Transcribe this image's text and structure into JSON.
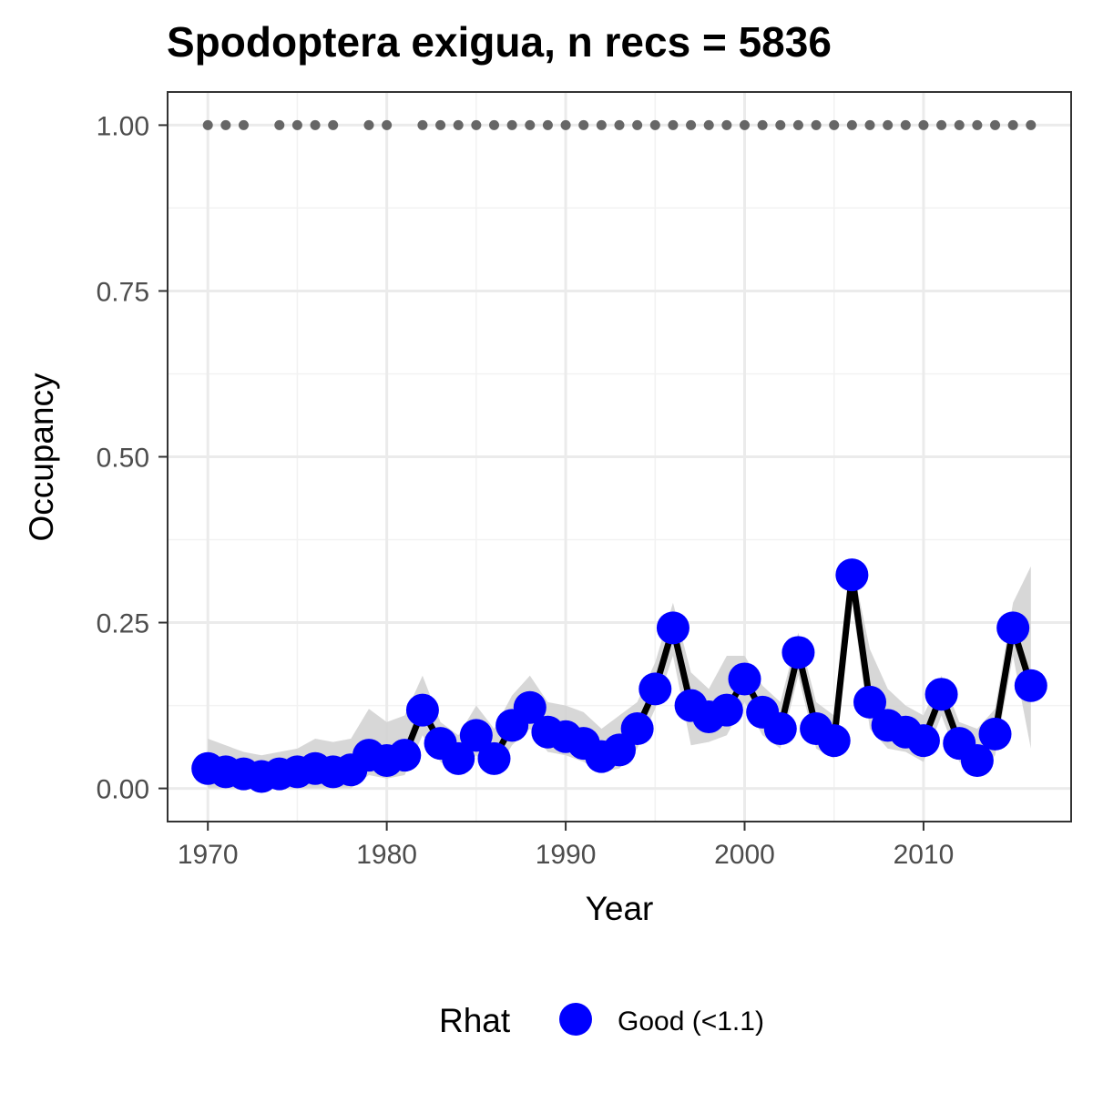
{
  "chart_data": {
    "type": "line",
    "title": "Spodoptera exigua, n recs = 5836",
    "xlabel": "Year",
    "ylabel": "Occupancy",
    "xlim": [
      1967.75,
      2018.25
    ],
    "ylim": [
      -0.05,
      1.05
    ],
    "x_ticks": [
      1970,
      1980,
      1990,
      2000,
      2010
    ],
    "x_tick_labels": [
      "1970",
      "1980",
      "1990",
      "2000",
      "2010"
    ],
    "y_ticks": [
      0,
      0.25,
      0.5,
      0.75,
      1.0
    ],
    "y_tick_labels": [
      "0.00",
      "0.25",
      "0.50",
      "0.75",
      "1.00"
    ],
    "grid": true,
    "colors": {
      "point": "#0000ff",
      "line": "#000000",
      "ribbon": "#d3d3d3",
      "record_dots": "#666666"
    },
    "series": [
      {
        "x": [
          1970,
          1971,
          1972,
          1973,
          1974,
          1975,
          1976,
          1977,
          1978,
          1979,
          1980,
          1981,
          1982,
          1983,
          1984,
          1985,
          1986,
          1987,
          1988,
          1989,
          1990,
          1991,
          1992,
          1993,
          1994,
          1995,
          1996,
          1997,
          1998,
          1999,
          2000,
          2001,
          2002,
          2003,
          2004,
          2005,
          2006,
          2007,
          2008,
          2009,
          2010,
          2011,
          2012,
          2013,
          2014,
          2015,
          2016
        ],
        "y": [
          0.03,
          0.025,
          0.022,
          0.018,
          0.022,
          0.025,
          0.03,
          0.025,
          0.028,
          0.05,
          0.042,
          0.05,
          0.118,
          0.068,
          0.045,
          0.08,
          0.045,
          0.095,
          0.122,
          0.085,
          0.078,
          0.068,
          0.048,
          0.058,
          0.09,
          0.15,
          0.242,
          0.125,
          0.108,
          0.118,
          0.165,
          0.115,
          0.09,
          0.205,
          0.09,
          0.072,
          0.322,
          0.13,
          0.095,
          0.085,
          0.072,
          0.142,
          0.068,
          0.042,
          0.082,
          0.242,
          0.155
        ],
        "lower": [
          0.0,
          0.0,
          0.0,
          0.0,
          0.0,
          0.0,
          0.0,
          0.0,
          0.0,
          0.02,
          0.015,
          0.02,
          0.08,
          0.04,
          0.02,
          0.05,
          0.02,
          0.065,
          0.09,
          0.055,
          0.05,
          0.04,
          0.025,
          0.03,
          0.06,
          0.12,
          0.2,
          0.065,
          0.07,
          0.08,
          0.13,
          0.08,
          0.06,
          0.17,
          0.06,
          0.045,
          0.28,
          0.09,
          0.06,
          0.055,
          0.04,
          0.11,
          0.04,
          0.02,
          0.05,
          0.2,
          0.06
        ],
        "upper": [
          0.075,
          0.065,
          0.055,
          0.05,
          0.055,
          0.06,
          0.075,
          0.07,
          0.075,
          0.12,
          0.1,
          0.11,
          0.17,
          0.1,
          0.08,
          0.125,
          0.09,
          0.14,
          0.17,
          0.13,
          0.125,
          0.115,
          0.09,
          0.11,
          0.13,
          0.19,
          0.28,
          0.175,
          0.15,
          0.2,
          0.2,
          0.155,
          0.13,
          0.235,
          0.13,
          0.11,
          0.34,
          0.21,
          0.15,
          0.125,
          0.11,
          0.17,
          0.1,
          0.09,
          0.12,
          0.28,
          0.335
        ]
      }
    ],
    "records_y": 1.0,
    "record_years": [
      1970,
      1971,
      1972,
      1974,
      1975,
      1976,
      1977,
      1979,
      1980,
      1982,
      1983,
      1984,
      1985,
      1986,
      1987,
      1988,
      1989,
      1990,
      1991,
      1992,
      1993,
      1994,
      1995,
      1996,
      1997,
      1998,
      1999,
      2000,
      2001,
      2002,
      2003,
      2004,
      2005,
      2006,
      2007,
      2008,
      2009,
      2010,
      2011,
      2012,
      2013,
      2014,
      2015,
      2016
    ],
    "legend": {
      "title": "Rhat",
      "position": "bottom",
      "entries": [
        {
          "label": "Good (<1.1)",
          "color": "#0000ff"
        }
      ]
    }
  }
}
